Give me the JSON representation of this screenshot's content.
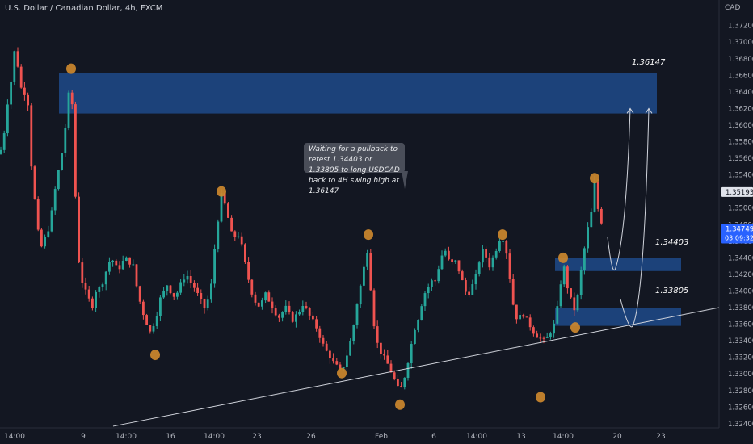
{
  "header": {
    "symbol_title": "U.S. Dollar / Canadian Dollar, 4h, FXCM",
    "currency": "CAD"
  },
  "callout": {
    "text": "Waiting for a pullback to retest 1.34403 or 1.33805 to long USDCAD back to 4H swing high at 1.36147"
  },
  "zones": [
    {
      "label": "1.36147",
      "top": 1.3663,
      "bottom": 1.3614
    },
    {
      "label": "1.34403",
      "top": 1.344,
      "bottom": 1.3424
    },
    {
      "label": "1.33805",
      "top": 1.338,
      "bottom": 1.3358
    }
  ],
  "price_tags": {
    "swing_high": "1.35193",
    "last_price": "1.34749",
    "countdown": "03:09:32"
  },
  "colors": {
    "background": "#131722",
    "bull": "#26a69a",
    "bear": "#ef5350",
    "zone": "#1e4a8a",
    "swing_marker": "#d08a2e",
    "last_price_tag": "#2962ff"
  },
  "chart_data": {
    "type": "candlestick",
    "title": "U.S. Dollar / Canadian Dollar, 4h, FXCM",
    "ylim": [
      1.3235,
      1.3745
    ],
    "y_ticks": [
      1.324,
      1.326,
      1.328,
      1.33,
      1.332,
      1.334,
      1.336,
      1.338,
      1.34,
      1.342,
      1.344,
      1.346,
      1.348,
      1.35,
      1.352,
      1.354,
      1.356,
      1.358,
      1.36,
      1.362,
      1.364,
      1.366,
      1.368,
      1.37,
      1.372
    ],
    "x_ticks": [
      "14:00",
      "9",
      "14:00",
      "16",
      "14:00",
      "23",
      "26",
      "Feb",
      "6",
      "14:00",
      "13",
      "14:00",
      "20",
      "23"
    ],
    "path": [
      [
        0,
        1.3565
      ],
      [
        5,
        1.359
      ],
      [
        9,
        1.3625
      ],
      [
        14,
        1.3655
      ],
      [
        18,
        1.369
      ],
      [
        22,
        1.3672
      ],
      [
        26,
        1.3645
      ],
      [
        30,
        1.364
      ],
      [
        35,
        1.3625
      ],
      [
        38,
        1.356
      ],
      [
        42,
        1.352
      ],
      [
        46,
        1.348
      ],
      [
        50,
        1.345
      ],
      [
        56,
        1.3465
      ],
      [
        60,
        1.3475
      ],
      [
        65,
        1.35
      ],
      [
        70,
        1.3535
      ],
      [
        75,
        1.3555
      ],
      [
        80,
        1.359
      ],
      [
        84,
        1.3628
      ],
      [
        88,
        1.3662
      ],
      [
        91,
        1.357
      ],
      [
        94,
        1.35
      ],
      [
        97,
        1.344
      ],
      [
        100,
        1.342
      ],
      [
        103,
        1.3405
      ],
      [
        108,
        1.3395
      ],
      [
        114,
        1.338
      ],
      [
        118,
        1.34
      ],
      [
        122,
        1.3402
      ],
      [
        126,
        1.3408
      ],
      [
        130,
        1.342
      ],
      [
        134,
        1.3432
      ],
      [
        138,
        1.344
      ],
      [
        142,
        1.3432
      ],
      [
        146,
        1.3425
      ],
      [
        150,
        1.3432
      ],
      [
        155,
        1.344
      ],
      [
        160,
        1.3435
      ],
      [
        165,
        1.343
      ],
      [
        170,
        1.34
      ],
      [
        175,
        1.338
      ],
      [
        180,
        1.3365
      ],
      [
        186,
        1.335
      ],
      [
        190,
        1.336
      ],
      [
        194,
        1.3372
      ],
      [
        198,
        1.339
      ],
      [
        203,
        1.34
      ],
      [
        207,
        1.3408
      ],
      [
        212,
        1.3398
      ],
      [
        217,
        1.3392
      ],
      [
        222,
        1.3405
      ],
      [
        227,
        1.3415
      ],
      [
        231,
        1.342
      ],
      [
        236,
        1.341
      ],
      [
        240,
        1.3405
      ],
      [
        245,
        1.3395
      ],
      [
        250,
        1.3385
      ],
      [
        254,
        1.3378
      ],
      [
        258,
        1.3392
      ],
      [
        262,
        1.341
      ],
      [
        266,
        1.3455
      ],
      [
        270,
        1.3488
      ],
      [
        274,
        1.3515
      ],
      [
        278,
        1.3505
      ],
      [
        282,
        1.349
      ],
      [
        286,
        1.347
      ],
      [
        290,
        1.3465
      ],
      [
        294,
        1.347
      ],
      [
        298,
        1.346
      ],
      [
        302,
        1.344
      ],
      [
        306,
        1.342
      ],
      [
        310,
        1.3405
      ],
      [
        314,
        1.339
      ],
      [
        318,
        1.3385
      ],
      [
        322,
        1.338
      ],
      [
        326,
        1.3392
      ],
      [
        330,
        1.3398
      ],
      [
        334,
        1.3385
      ],
      [
        338,
        1.338
      ],
      [
        342,
        1.3372
      ],
      [
        346,
        1.3368
      ],
      [
        350,
        1.3375
      ],
      [
        354,
        1.338
      ],
      [
        358,
        1.3372
      ],
      [
        362,
        1.3365
      ],
      [
        366,
        1.337
      ],
      [
        370,
        1.3375
      ],
      [
        374,
        1.3385
      ],
      [
        378,
        1.338
      ],
      [
        382,
        1.3372
      ],
      [
        386,
        1.3365
      ],
      [
        390,
        1.336
      ],
      [
        394,
        1.335
      ],
      [
        398,
        1.334
      ],
      [
        402,
        1.333
      ],
      [
        406,
        1.3325
      ],
      [
        410,
        1.3318
      ],
      [
        414,
        1.3312
      ],
      [
        418,
        1.3308
      ],
      [
        422,
        1.3303
      ],
      [
        426,
        1.3312
      ],
      [
        430,
        1.3325
      ],
      [
        434,
        1.334
      ],
      [
        438,
        1.336
      ],
      [
        442,
        1.3385
      ],
      [
        446,
        1.3405
      ],
      [
        450,
        1.3425
      ],
      [
        454,
        1.3455
      ],
      [
        457,
        1.3425
      ],
      [
        460,
        1.339
      ],
      [
        463,
        1.336
      ],
      [
        466,
        1.334
      ],
      [
        470,
        1.3328
      ],
      [
        474,
        1.3322
      ],
      [
        478,
        1.3315
      ],
      [
        482,
        1.3308
      ],
      [
        486,
        1.3298
      ],
      [
        490,
        1.329
      ],
      [
        494,
        1.3278
      ],
      [
        498,
        1.3285
      ],
      [
        502,
        1.3302
      ],
      [
        506,
        1.332
      ],
      [
        510,
        1.334
      ],
      [
        514,
        1.3358
      ],
      [
        518,
        1.3368
      ],
      [
        522,
        1.3385
      ],
      [
        526,
        1.3398
      ],
      [
        530,
        1.3405
      ],
      [
        534,
        1.3412
      ],
      [
        538,
        1.341
      ],
      [
        542,
        1.3425
      ],
      [
        546,
        1.344
      ],
      [
        550,
        1.3452
      ],
      [
        554,
        1.344
      ],
      [
        558,
        1.343
      ],
      [
        562,
        1.344
      ],
      [
        566,
        1.343
      ],
      [
        570,
        1.342
      ],
      [
        574,
        1.3405
      ],
      [
        578,
        1.3395
      ],
      [
        582,
        1.34
      ],
      [
        586,
        1.341
      ],
      [
        590,
        1.342
      ],
      [
        594,
        1.344
      ],
      [
        598,
        1.345
      ],
      [
        602,
        1.344
      ],
      [
        606,
        1.343
      ],
      [
        610,
        1.344
      ],
      [
        614,
        1.345
      ],
      [
        618,
        1.3462
      ],
      [
        622,
        1.3465
      ],
      [
        626,
        1.3452
      ],
      [
        630,
        1.3425
      ],
      [
        634,
        1.339
      ],
      [
        638,
        1.337
      ],
      [
        642,
        1.3365
      ],
      [
        646,
        1.3375
      ],
      [
        650,
        1.3368
      ],
      [
        654,
        1.3362
      ],
      [
        658,
        1.3355
      ],
      [
        662,
        1.3348
      ],
      [
        666,
        1.3345
      ],
      [
        670,
        1.3342
      ],
      [
        674,
        1.334
      ],
      [
        678,
        1.3345
      ],
      [
        682,
        1.3352
      ],
      [
        686,
        1.336
      ],
      [
        690,
        1.338
      ],
      [
        694,
        1.341
      ],
      [
        697,
        1.3436
      ],
      [
        700,
        1.3415
      ],
      [
        704,
        1.3398
      ],
      [
        708,
        1.3385
      ],
      [
        712,
        1.3375
      ],
      [
        716,
        1.34
      ],
      [
        720,
        1.343
      ],
      [
        724,
        1.3455
      ],
      [
        728,
        1.3478
      ],
      [
        732,
        1.3495
      ],
      [
        736,
        1.353
      ],
      [
        739,
        1.3505
      ],
      [
        742,
        1.349
      ],
      [
        745,
        1.3482
      ],
      [
        748,
        1.3475
      ]
    ],
    "zones": [
      {
        "label": "1.36147",
        "top": 1.3663,
        "bottom": 1.3614
      },
      {
        "label": "1.34403",
        "top": 1.344,
        "bottom": 1.3424
      },
      {
        "label": "1.33805",
        "top": 1.338,
        "bottom": 1.3358
      }
    ],
    "swing_points": [
      {
        "type": "high",
        "x": 88,
        "value": 1.3668
      },
      {
        "type": "high",
        "x": 274,
        "value": 1.352
      },
      {
        "type": "high",
        "x": 456,
        "value": 1.3468
      },
      {
        "type": "high",
        "x": 622,
        "value": 1.3468
      },
      {
        "type": "high",
        "x": 697,
        "value": 1.344
      },
      {
        "type": "high",
        "x": 736,
        "value": 1.3536
      },
      {
        "type": "low",
        "x": 192,
        "value": 1.3323
      },
      {
        "type": "low",
        "x": 423,
        "value": 1.3301
      },
      {
        "type": "low",
        "x": 495,
        "value": 1.3263
      },
      {
        "type": "low",
        "x": 669,
        "value": 1.3272
      },
      {
        "type": "low",
        "x": 712,
        "value": 1.3356
      }
    ],
    "trendline": {
      "from": {
        "x": 140,
        "value": 1.3237
      },
      "to": {
        "x": 890,
        "value": 1.338
      }
    },
    "projections": [
      {
        "start": {
          "x": 752,
          "value": 1.3465
        },
        "low": {
          "x": 762,
          "value": 1.3428
        },
        "end": {
          "x": 780,
          "value": 1.362
        }
      },
      {
        "start": {
          "x": 768,
          "value": 1.339
        },
        "low": {
          "x": 784,
          "value": 1.336
        },
        "end": {
          "x": 803,
          "value": 1.362
        }
      }
    ],
    "current_price": 1.34749,
    "swing_high_price": 1.35193,
    "grid": false,
    "legend": "none"
  }
}
